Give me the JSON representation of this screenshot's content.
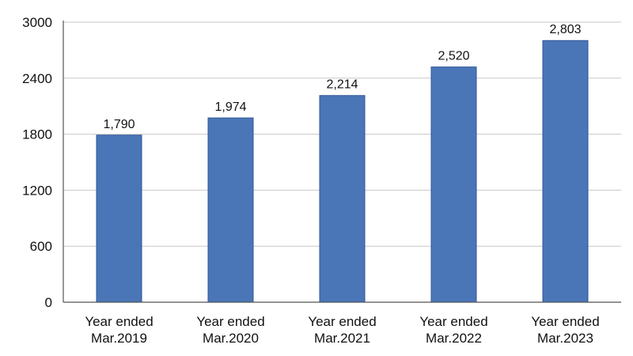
{
  "chart_data": {
    "type": "bar",
    "categories": [
      [
        "Year ended",
        "Mar.2019"
      ],
      [
        "Year ended",
        "Mar.2020"
      ],
      [
        "Year ended",
        "Mar.2021"
      ],
      [
        "Year ended",
        "Mar.2022"
      ],
      [
        "Year ended",
        "Mar.2023"
      ]
    ],
    "values": [
      1790,
      1974,
      2214,
      2520,
      2803
    ],
    "value_labels": [
      "1,790",
      "1,974",
      "2,214",
      "2,520",
      "2,803"
    ],
    "yticks": [
      0,
      600,
      1200,
      1800,
      2400,
      3000
    ],
    "ylim": [
      0,
      3000
    ],
    "grid": true,
    "colors": {
      "bar": "#4a76b8",
      "bar_edge": "#2f5597",
      "grid": "#c8c8c8",
      "axis": "#555555"
    }
  }
}
